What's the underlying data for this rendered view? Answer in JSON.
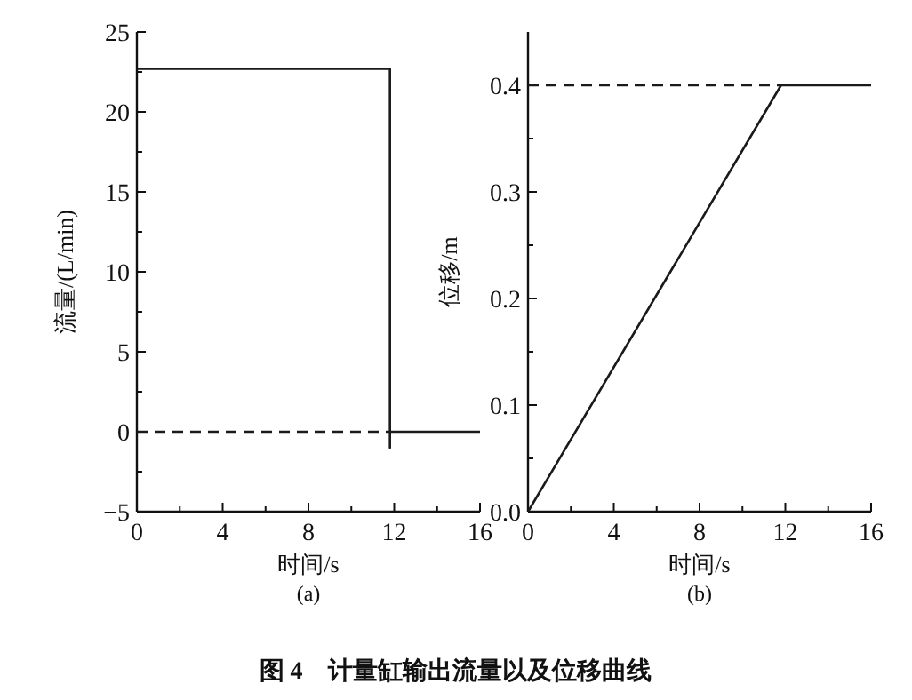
{
  "chart_data": [
    {
      "type": "line",
      "xlabel": "时间/s",
      "ylabel": "流量/(L/min)",
      "xlim": [
        0,
        16
      ],
      "ylim": [
        -5,
        25
      ],
      "xticks": [
        0,
        {
          "value": 2,
          "label": null
        },
        4,
        {
          "value": 6,
          "label": null
        },
        8,
        {
          "value": 10,
          "label": null
        },
        12,
        {
          "value": 14,
          "label": null
        },
        16
      ],
      "yticks": [
        -5,
        {
          "value": -2.5,
          "label": null
        },
        0,
        {
          "value": 2.5,
          "label": null
        },
        5,
        {
          "value": 7.5,
          "label": null
        },
        10,
        {
          "value": 12.5,
          "label": null
        },
        15,
        {
          "value": 17.5,
          "label": null
        },
        20,
        {
          "value": 22.5,
          "label": null
        },
        25
      ],
      "series": [
        {
          "color": "#1a1a1a",
          "line_style": "solid",
          "x": [
            0,
            11.8,
            11.8,
            11.8,
            16
          ],
          "values": [
            22.7,
            22.7,
            -1,
            0,
            0
          ]
        },
        {
          "color": "#1a1a1a",
          "line_style": "dashed",
          "x": [
            0,
            11.8
          ],
          "values": [
            0,
            0
          ]
        }
      ],
      "annotations": [
        "(a)"
      ]
    },
    {
      "type": "line",
      "xlabel": "时间/s",
      "ylabel": "位移/m",
      "xlim": [
        0,
        16
      ],
      "ylim": [
        0,
        0.45
      ],
      "xticks": [
        0,
        {
          "value": 2,
          "label": null
        },
        4,
        {
          "value": 6,
          "label": null
        },
        8,
        {
          "value": 10,
          "label": null
        },
        12,
        {
          "value": 14,
          "label": null
        },
        16
      ],
      "yticks": [
        {
          "value": 0,
          "label": "0.0"
        },
        {
          "value": 0.05,
          "label": null
        },
        0.1,
        {
          "value": 0.15,
          "label": null
        },
        0.2,
        {
          "value": 0.25,
          "label": null
        },
        0.3,
        {
          "value": 0.35,
          "label": null
        },
        0.4
      ],
      "series": [
        {
          "color": "#1a1a1a",
          "line_style": "solid",
          "x": [
            0,
            11.8,
            16
          ],
          "values": [
            0,
            0.4,
            0.4
          ]
        },
        {
          "color": "#1a1a1a",
          "line_style": "dashed",
          "x": [
            0,
            11.8
          ],
          "values": [
            0.4,
            0.4
          ]
        }
      ],
      "annotations": [
        "(b)",
        "图 4　计量缸输出流量以及位移曲线"
      ]
    }
  ]
}
